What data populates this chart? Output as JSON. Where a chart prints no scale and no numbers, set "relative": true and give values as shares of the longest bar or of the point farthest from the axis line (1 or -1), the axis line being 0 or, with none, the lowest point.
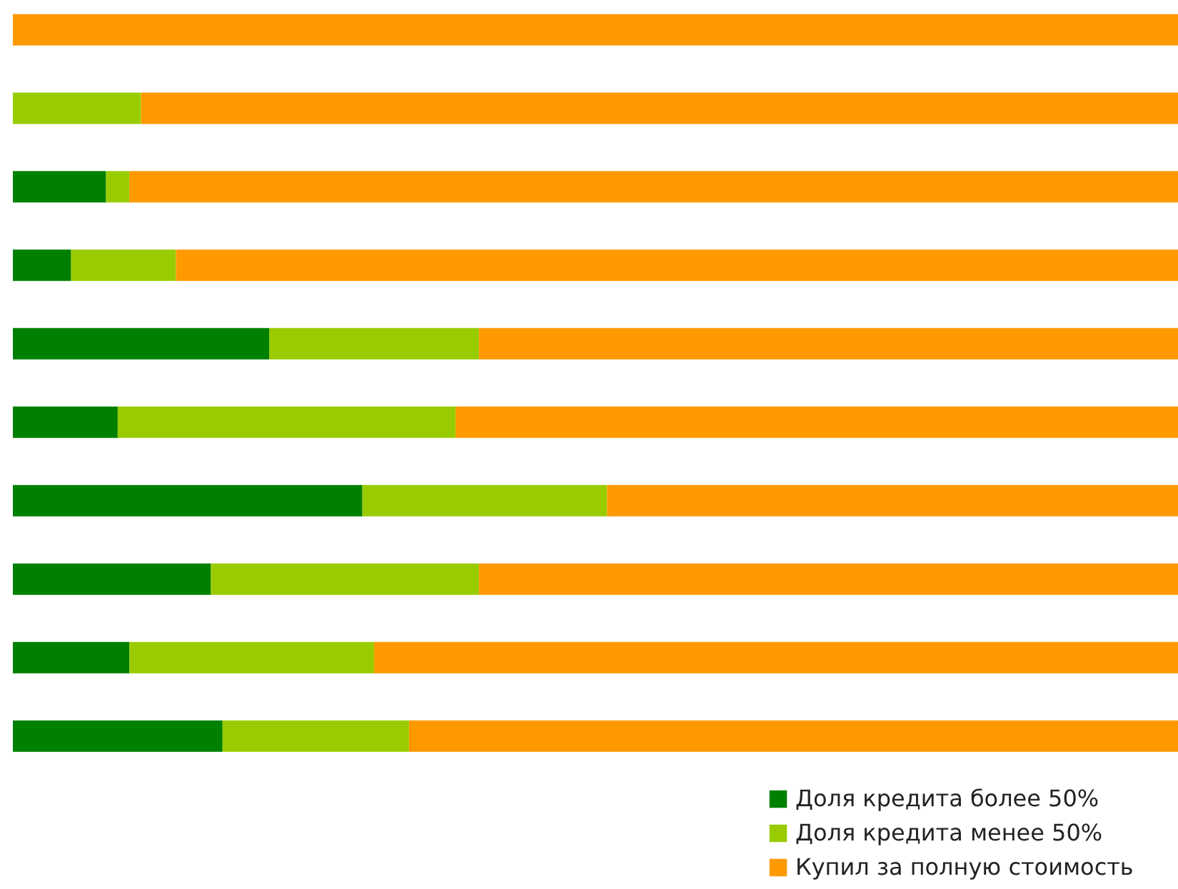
{
  "chart_data": {
    "type": "bar",
    "orientation": "horizontal",
    "stacked": true,
    "relative": true,
    "legend": "bottom right",
    "categories": [
      null,
      null,
      null,
      null,
      null,
      null,
      null,
      null,
      null,
      null
    ],
    "series": [
      {
        "name": "Доля кредита более 50%",
        "color": "#008000",
        "values": [
          0,
          0,
          0.08,
          0.05,
          0.22,
          0.09,
          0.3,
          0.17,
          0.1,
          0.18
        ]
      },
      {
        "name": "Доля кредита менее 50%",
        "color": "#99cc00",
        "values": [
          0,
          0.11,
          0.02,
          0.09,
          0.18,
          0.29,
          0.21,
          0.23,
          0.21,
          0.16
        ]
      },
      {
        "name": "Купил за полную стоимость",
        "color": "#ff9900",
        "values": [
          1,
          0.89,
          0.9,
          0.86,
          0.6,
          0.62,
          0.49,
          0.6,
          0.69,
          0.66
        ]
      }
    ]
  }
}
